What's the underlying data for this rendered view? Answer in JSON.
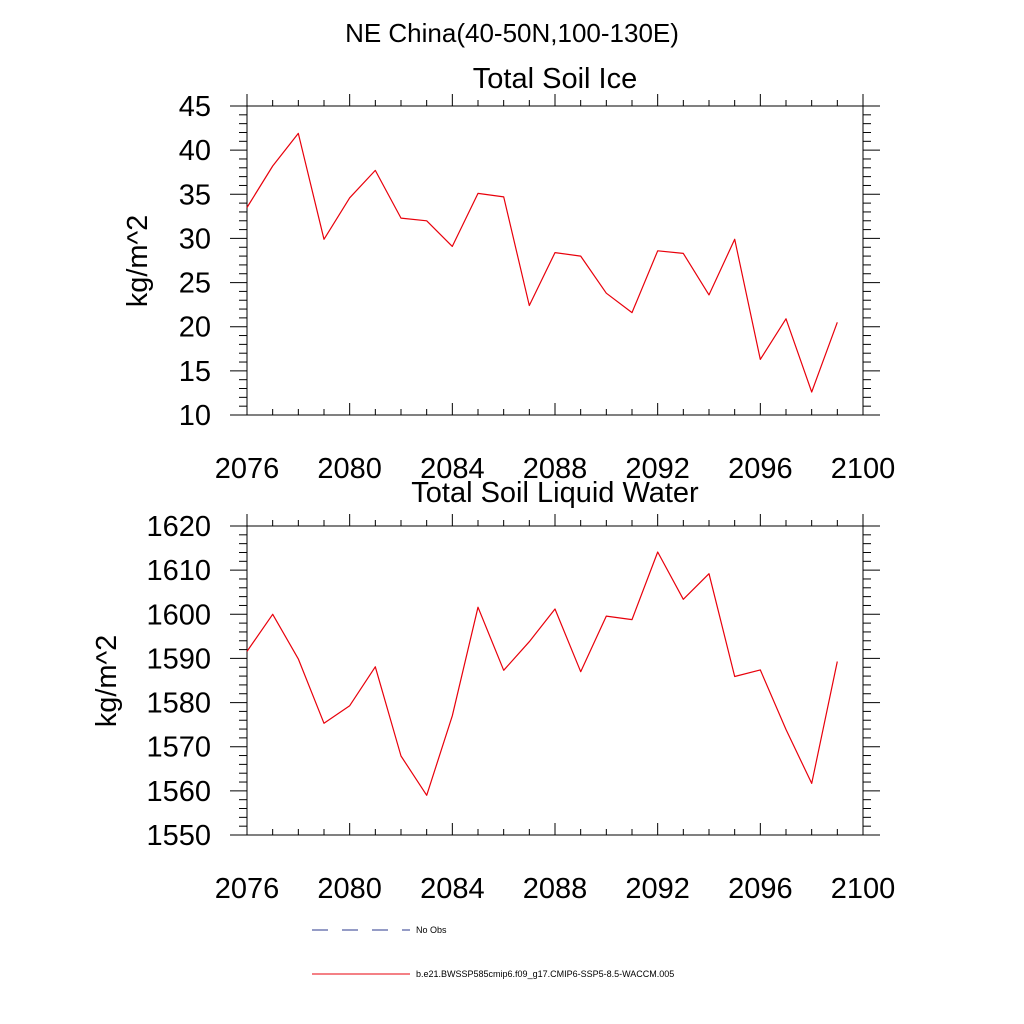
{
  "page_title": "NE China(40-50N,100-130E)",
  "legend": [
    {
      "label": "No Obs",
      "color": "#2b3a8c",
      "style": "dashed"
    },
    {
      "label": "b.e21.BWSSP585cmip6.f09_g17.CMIP6-SSP5-8.5-WACCM.005",
      "color": "#e8000b",
      "style": "solid"
    }
  ],
  "chart_data": [
    {
      "type": "line",
      "title": "Total Soil Ice",
      "xlabel": "",
      "ylabel": "kg/m^2",
      "xlim": [
        2076,
        2100
      ],
      "ylim": [
        10,
        45
      ],
      "x_ticks": [
        "2076",
        "2080",
        "2084",
        "2088",
        "2092",
        "2096",
        "2100"
      ],
      "y_ticks": [
        "10",
        "15",
        "20",
        "25",
        "30",
        "35",
        "40",
        "45"
      ],
      "x": [
        2076,
        2077,
        2078,
        2079,
        2080,
        2081,
        2082,
        2083,
        2084,
        2085,
        2086,
        2087,
        2088,
        2089,
        2090,
        2091,
        2092,
        2093,
        2094,
        2095,
        2096,
        2097,
        2098,
        2099
      ],
      "series": [
        {
          "name": "b.e21.BWSSP585cmip6.f09_g17.CMIP6-SSP5-8.5-WACCM.005",
          "color": "#e8000b",
          "values": [
            33.5,
            38.2,
            41.9,
            29.9,
            34.6,
            37.7,
            32.3,
            32.0,
            29.1,
            35.1,
            34.7,
            22.4,
            28.4,
            28.0,
            23.8,
            21.6,
            28.6,
            28.3,
            23.6,
            29.9,
            16.3,
            20.9,
            12.6,
            20.5
          ]
        }
      ]
    },
    {
      "type": "line",
      "title": "Total Soil Liquid Water",
      "xlabel": "",
      "ylabel": "kg/m^2",
      "xlim": [
        2076,
        2100
      ],
      "ylim": [
        1550,
        1620
      ],
      "x_ticks": [
        "2076",
        "2080",
        "2084",
        "2088",
        "2092",
        "2096",
        "2100"
      ],
      "y_ticks": [
        "1550",
        "1560",
        "1570",
        "1580",
        "1590",
        "1600",
        "1610",
        "1620"
      ],
      "x": [
        2076,
        2077,
        2078,
        2079,
        2080,
        2081,
        2082,
        2083,
        2084,
        2085,
        2086,
        2087,
        2088,
        2089,
        2090,
        2091,
        2092,
        2093,
        2094,
        2095,
        2096,
        2097,
        2098,
        2099
      ],
      "series": [
        {
          "name": "b.e21.BWSSP585cmip6.f09_g17.CMIP6-SSP5-8.5-WACCM.005",
          "color": "#e8000b",
          "values": [
            1591.6,
            1600.0,
            1589.9,
            1575.3,
            1579.3,
            1588.1,
            1567.9,
            1559.0,
            1577.0,
            1601.6,
            1587.3,
            1593.8,
            1601.2,
            1587.0,
            1599.6,
            1598.8,
            1614.1,
            1603.4,
            1609.2,
            1585.9,
            1587.4,
            1573.9,
            1561.7,
            1589.3
          ]
        }
      ]
    }
  ]
}
